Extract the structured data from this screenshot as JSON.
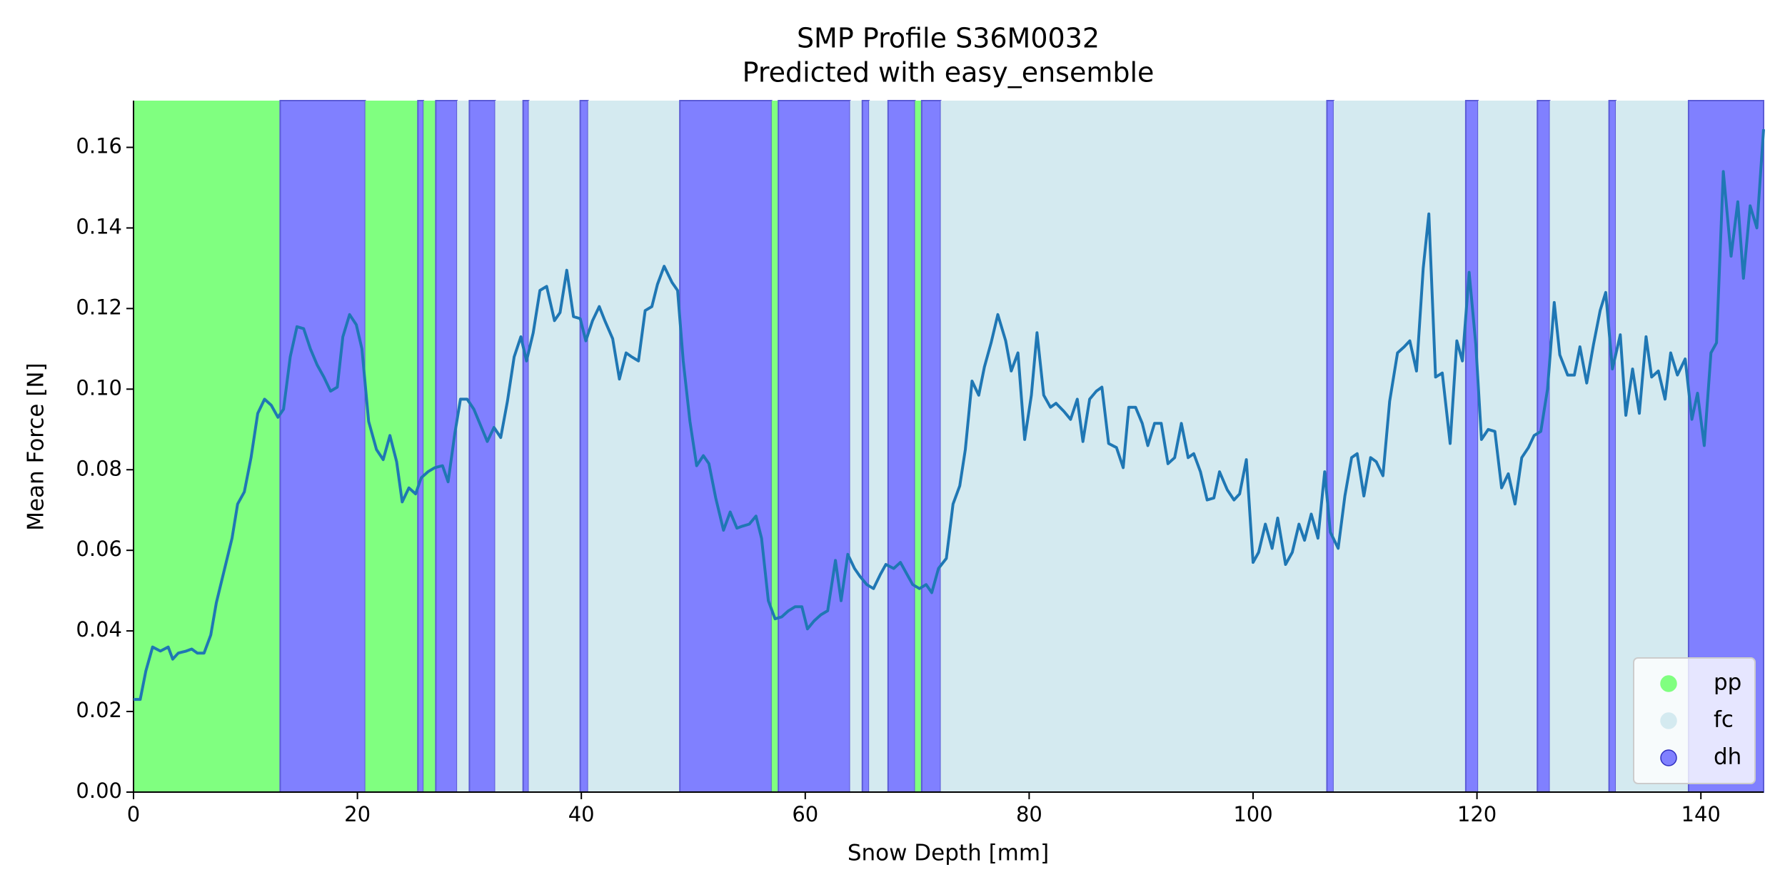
{
  "chart_data": {
    "type": "line",
    "title": "SMP Profile S36M0032",
    "subtitle": "Predicted with easy_ensemble",
    "xlabel": "Snow Depth [mm]",
    "ylabel": "Mean Force [N]",
    "xlim": [
      0,
      145.6
    ],
    "ylim": [
      0,
      0.1716
    ],
    "xticks": [
      0,
      20,
      40,
      60,
      80,
      100,
      120,
      140
    ],
    "yticks": [
      {
        "value": 0,
        "label": "0.00"
      },
      {
        "value": 0.02,
        "label": "0.02"
      },
      {
        "value": 0.04,
        "label": "0.04"
      },
      {
        "value": 0.06,
        "label": "0.06"
      },
      {
        "value": 0.08,
        "label": "0.08"
      },
      {
        "value": 0.1,
        "label": "0.10"
      },
      {
        "value": 0.12,
        "label": "0.12"
      },
      {
        "value": 0.14,
        "label": "0.14"
      },
      {
        "value": 0.16,
        "label": "0.16"
      }
    ],
    "legend": "lower right",
    "classes": [
      {
        "name": "pp",
        "color": "#80ff80"
      },
      {
        "name": "fc",
        "color": "#d4eaf0"
      },
      {
        "name": "dh",
        "color": "#8080ff"
      }
    ],
    "regions": [
      {
        "class": 0,
        "start": 0,
        "end": 13.1
      },
      {
        "class": 2,
        "start": 13.1,
        "end": 20.7
      },
      {
        "class": 0,
        "start": 20.7,
        "end": 25.4
      },
      {
        "class": 2,
        "start": 25.4,
        "end": 25.9
      },
      {
        "class": 0,
        "start": 25.9,
        "end": 27.0
      },
      {
        "class": 2,
        "start": 27.0,
        "end": 28.9
      },
      {
        "class": 1,
        "start": 28.9,
        "end": 30.0
      },
      {
        "class": 2,
        "start": 30.0,
        "end": 32.3
      },
      {
        "class": 1,
        "start": 32.3,
        "end": 34.8
      },
      {
        "class": 2,
        "start": 34.8,
        "end": 35.3
      },
      {
        "class": 1,
        "start": 35.3,
        "end": 39.9
      },
      {
        "class": 2,
        "start": 39.9,
        "end": 40.6
      },
      {
        "class": 1,
        "start": 40.6,
        "end": 48.8
      },
      {
        "class": 2,
        "start": 48.8,
        "end": 57.0
      },
      {
        "class": 0,
        "start": 57.0,
        "end": 57.6
      },
      {
        "class": 2,
        "start": 57.6,
        "end": 64.0
      },
      {
        "class": 1,
        "start": 64.0,
        "end": 65.1
      },
      {
        "class": 2,
        "start": 65.1,
        "end": 65.7
      },
      {
        "class": 1,
        "start": 65.7,
        "end": 67.4
      },
      {
        "class": 2,
        "start": 67.4,
        "end": 69.8
      },
      {
        "class": 0,
        "start": 69.8,
        "end": 70.4
      },
      {
        "class": 2,
        "start": 70.4,
        "end": 72.1
      },
      {
        "class": 1,
        "start": 72.1,
        "end": 106.6
      },
      {
        "class": 2,
        "start": 106.6,
        "end": 107.2
      },
      {
        "class": 1,
        "start": 107.2,
        "end": 119.0
      },
      {
        "class": 2,
        "start": 119.0,
        "end": 120.1
      },
      {
        "class": 1,
        "start": 120.1,
        "end": 125.4
      },
      {
        "class": 2,
        "start": 125.4,
        "end": 126.5
      },
      {
        "class": 1,
        "start": 126.5,
        "end": 131.8
      },
      {
        "class": 2,
        "start": 131.8,
        "end": 132.4
      },
      {
        "class": 1,
        "start": 132.4,
        "end": 138.9
      },
      {
        "class": 2,
        "start": 138.9,
        "end": 145.6
      }
    ],
    "color": "#1f77b4",
    "x": [
      0.0,
      0.6,
      1.1,
      1.7,
      2.4,
      3.1,
      3.5,
      4.0,
      4.7,
      5.2,
      5.7,
      6.3,
      6.9,
      7.4,
      8.1,
      8.8,
      9.3,
      9.9,
      10.5,
      11.1,
      11.7,
      12.3,
      12.9,
      13.4,
      14.0,
      14.6,
      15.2,
      15.8,
      16.4,
      17.0,
      17.6,
      18.2,
      18.7,
      19.3,
      19.9,
      20.4,
      21.0,
      21.7,
      22.3,
      22.9,
      23.5,
      24.0,
      24.6,
      25.2,
      25.7,
      26.3,
      26.9,
      27.6,
      28.1,
      28.7,
      29.2,
      29.8,
      30.4,
      31.0,
      31.6,
      32.2,
      32.8,
      33.4,
      34.0,
      34.6,
      35.1,
      35.7,
      36.3,
      36.9,
      37.6,
      38.1,
      38.7,
      39.3,
      39.9,
      40.4,
      41.0,
      41.6,
      42.1,
      42.8,
      43.4,
      44.0,
      44.5,
      45.1,
      45.7,
      46.3,
      46.8,
      47.4,
      48.1,
      48.6,
      49.1,
      49.7,
      50.3,
      50.9,
      51.4,
      52.0,
      52.7,
      53.3,
      53.9,
      54.4,
      55.0,
      55.6,
      56.1,
      56.7,
      57.3,
      57.9,
      58.5,
      59.1,
      59.7,
      60.2,
      60.8,
      61.4,
      62.0,
      62.7,
      63.2,
      63.8,
      64.4,
      64.9,
      65.5,
      66.1,
      66.7,
      67.2,
      67.9,
      68.5,
      69.1,
      69.6,
      70.2,
      70.8,
      71.3,
      71.9,
      72.6,
      73.2,
      73.8,
      74.3,
      74.9,
      75.5,
      76.0,
      76.6,
      77.2,
      77.9,
      78.4,
      79.0,
      79.6,
      80.2,
      80.7,
      81.3,
      81.9,
      82.4,
      83.1,
      83.7,
      84.3,
      84.8,
      85.4,
      86.0,
      86.5,
      87.1,
      87.8,
      88.4,
      88.9,
      89.5,
      90.1,
      90.6,
      91.2,
      91.8,
      92.4,
      93.0,
      93.6,
      94.2,
      94.7,
      95.3,
      95.9,
      96.5,
      97.0,
      97.7,
      98.3,
      98.8,
      99.4,
      100.0,
      100.5,
      101.1,
      101.7,
      102.2,
      102.9,
      103.5,
      104.1,
      104.6,
      105.2,
      105.8,
      106.4,
      106.9,
      107.6,
      108.2,
      108.8,
      109.3,
      109.9,
      110.5,
      111.0,
      111.6,
      112.2,
      112.9,
      113.5,
      114.0,
      114.6,
      115.2,
      115.7,
      116.3,
      116.9,
      117.6,
      118.2,
      118.7,
      119.3,
      119.9,
      120.4,
      121.0,
      121.6,
      122.2,
      122.8,
      123.4,
      124.0,
      124.6,
      125.1,
      125.7,
      126.3,
      126.9,
      127.4,
      128.1,
      128.7,
      129.2,
      129.8,
      130.4,
      131.0,
      131.5,
      132.1,
      132.8,
      133.3,
      133.9,
      134.5,
      135.1,
      135.6,
      136.2,
      136.8,
      137.3,
      137.9,
      138.6,
      139.2,
      139.7,
      140.3,
      140.9,
      141.4,
      142.0,
      142.7,
      143.3,
      143.8,
      144.4,
      145.0,
      145.6
    ],
    "values": [
      0.023,
      0.023,
      0.03,
      0.036,
      0.035,
      0.036,
      0.033,
      0.0345,
      0.035,
      0.0355,
      0.0345,
      0.0345,
      0.039,
      0.047,
      0.055,
      0.063,
      0.0715,
      0.0745,
      0.083,
      0.094,
      0.0975,
      0.096,
      0.093,
      0.095,
      0.108,
      0.1155,
      0.115,
      0.11,
      0.106,
      0.103,
      0.0995,
      0.1005,
      0.113,
      0.1185,
      0.116,
      0.11,
      0.092,
      0.085,
      0.0825,
      0.0885,
      0.082,
      0.072,
      0.0755,
      0.074,
      0.078,
      0.0795,
      0.0805,
      0.081,
      0.077,
      0.089,
      0.0975,
      0.0975,
      0.095,
      0.091,
      0.087,
      0.0905,
      0.088,
      0.097,
      0.108,
      0.113,
      0.107,
      0.114,
      0.1245,
      0.1255,
      0.117,
      0.119,
      0.1295,
      0.118,
      0.1175,
      0.112,
      0.117,
      0.1205,
      0.117,
      0.1125,
      0.1025,
      0.109,
      0.108,
      0.107,
      0.1195,
      0.1205,
      0.126,
      0.1305,
      0.1265,
      0.1245,
      0.107,
      0.092,
      0.081,
      0.0835,
      0.0815,
      0.073,
      0.065,
      0.0695,
      0.0655,
      0.066,
      0.0665,
      0.0685,
      0.063,
      0.0475,
      0.043,
      0.0435,
      0.045,
      0.046,
      0.046,
      0.0405,
      0.0425,
      0.044,
      0.045,
      0.0575,
      0.0475,
      0.059,
      0.0555,
      0.0535,
      0.0515,
      0.0505,
      0.054,
      0.0565,
      0.0555,
      0.057,
      0.054,
      0.0515,
      0.0505,
      0.0515,
      0.0495,
      0.0555,
      0.058,
      0.0715,
      0.076,
      0.085,
      0.102,
      0.0985,
      0.1055,
      0.1115,
      0.1185,
      0.112,
      0.1045,
      0.109,
      0.0875,
      0.0985,
      0.114,
      0.0985,
      0.0955,
      0.0965,
      0.0945,
      0.0925,
      0.0975,
      0.087,
      0.0975,
      0.0995,
      0.1005,
      0.0865,
      0.0855,
      0.0805,
      0.0955,
      0.0955,
      0.0915,
      0.086,
      0.0915,
      0.0915,
      0.0815,
      0.083,
      0.0915,
      0.083,
      0.084,
      0.0795,
      0.0725,
      0.073,
      0.0795,
      0.075,
      0.0725,
      0.074,
      0.0825,
      0.057,
      0.0595,
      0.0665,
      0.0605,
      0.068,
      0.0565,
      0.0595,
      0.0665,
      0.0625,
      0.069,
      0.063,
      0.0795,
      0.0645,
      0.0605,
      0.0735,
      0.083,
      0.084,
      0.0735,
      0.083,
      0.082,
      0.0785,
      0.097,
      0.109,
      0.1105,
      0.112,
      0.1045,
      0.13,
      0.1435,
      0.103,
      0.104,
      0.0865,
      0.112,
      0.107,
      0.129,
      0.111,
      0.0875,
      0.09,
      0.0895,
      0.0755,
      0.079,
      0.0715,
      0.083,
      0.0855,
      0.0885,
      0.0895,
      0.1,
      0.1215,
      0.1085,
      0.1035,
      0.1035,
      0.1105,
      0.1015,
      0.111,
      0.1195,
      0.124,
      0.105,
      0.1135,
      0.0935,
      0.105,
      0.094,
      0.113,
      0.103,
      0.1045,
      0.0975,
      0.109,
      0.1035,
      0.1075,
      0.0925,
      0.099,
      0.086,
      0.109,
      0.1115,
      0.154,
      0.133,
      0.1465,
      0.1275,
      0.1455,
      0.14,
      0.1645
    ]
  }
}
